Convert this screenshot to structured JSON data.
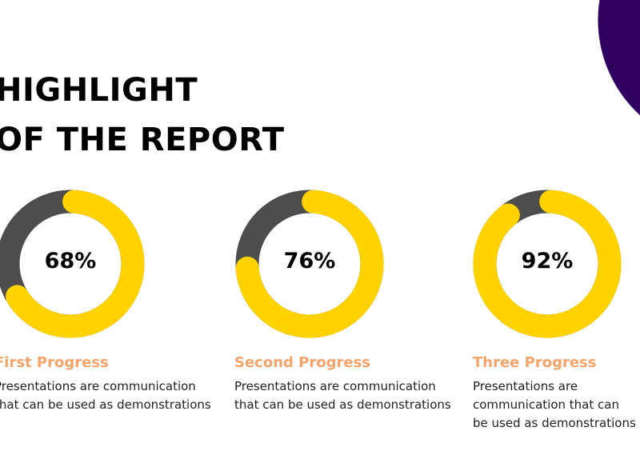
{
  "title_lines": [
    "HIGHLIGHT",
    "OF THE REPORT"
  ],
  "colors": {
    "accent": "#FFD200",
    "track": "#4D4D4D",
    "label": "#F5A46A",
    "blob": "#300060"
  },
  "items": [
    {
      "percent": 68,
      "percent_label": "68%",
      "label": "First Progress",
      "desc_lines": [
        "Presentations are communication",
        "that can be used as demonstrations"
      ]
    },
    {
      "percent": 76,
      "percent_label": "76%",
      "label": "Second Progress",
      "desc_lines": [
        "Presentations are communication",
        "that can be used as demonstrations"
      ]
    },
    {
      "percent": 92,
      "percent_label": "92%",
      "label": "Three Progress",
      "desc_lines": [
        "Presentations are communication",
        "that can be used as demonstrations"
      ]
    }
  ]
}
